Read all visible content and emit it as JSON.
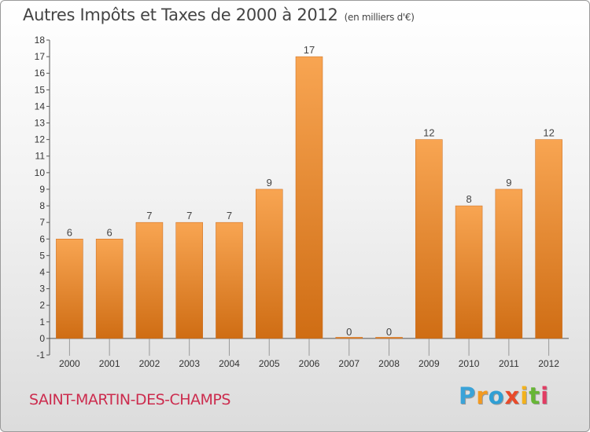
{
  "header": {
    "title": "Autres Impôts et Taxes de 2000 à 2012",
    "subtitle": "(en milliers d'€)"
  },
  "footer": {
    "place": "SAINT-MARTIN-DES-CHAMPS",
    "logo": "Proxiti"
  },
  "colors": {
    "bar_top": "#f8a552",
    "bar_bottom": "#cf6d14",
    "place_text": "#cc2c4e"
  },
  "chart_data": {
    "type": "bar",
    "categories": [
      "2000",
      "2001",
      "2002",
      "2003",
      "2004",
      "2005",
      "2006",
      "2007",
      "2008",
      "2009",
      "2010",
      "2011",
      "2012"
    ],
    "values": [
      6,
      6,
      7,
      7,
      7,
      9,
      17,
      0,
      0,
      12,
      8,
      9,
      12
    ],
    "title": "Autres Impôts et Taxes de 2000 à 2012",
    "subtitle": "(en milliers d'€)",
    "xlabel": "",
    "ylabel": "",
    "ylim": [
      -1,
      18
    ],
    "yticks": [
      "-1",
      "0",
      "1",
      "2",
      "3",
      "4",
      "5",
      "6",
      "7",
      "8",
      "9",
      "10",
      "11",
      "12",
      "13",
      "14",
      "15",
      "16",
      "17",
      "18"
    ],
    "grid": false,
    "legend": "none"
  }
}
